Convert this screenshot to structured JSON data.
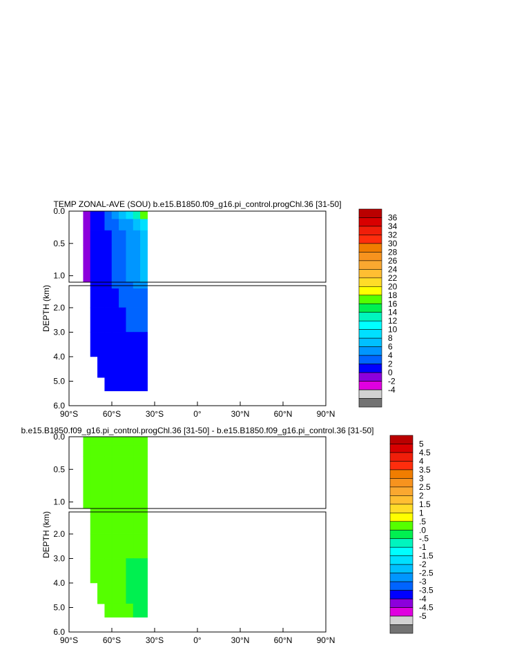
{
  "chart_data": [
    {
      "type": "heatmap",
      "title": "TEMP ZONAL-AVE (SOU) b.e15.B1850.f09_g16.pi_control.progChl.36 [31-50]",
      "ylabel": "DEPTH (km)",
      "xlim": [
        -90,
        90
      ],
      "x_ticks": [
        "90°S",
        "60°S",
        "30°S",
        "0°",
        "30°N",
        "60°N",
        "90°N"
      ],
      "y_ticks_upper": [
        "0.0",
        "0.5",
        "1.0"
      ],
      "y_ticks_lower": [
        "2.0",
        "3.0",
        "4.0",
        "5.0",
        "6.0"
      ],
      "upper_depth_range_km": [
        0,
        1.1
      ],
      "lower_depth_range_km": [
        1.1,
        6.0
      ],
      "colorbar_labels": [
        "36",
        "34",
        "32",
        "30",
        "28",
        "26",
        "24",
        "22",
        "20",
        "18",
        "16",
        "14",
        "12",
        "10",
        "8",
        "6",
        "4",
        "2",
        "0",
        "-2",
        "-4"
      ],
      "colorbar_colors": [
        "#ba0000",
        "#d80000",
        "#f01e0a",
        "#ff2d0d",
        "#f07d00",
        "#f7931e",
        "#faa830",
        "#ffbe32",
        "#ffdc28",
        "#ffff00",
        "#55ff00",
        "#00f050",
        "#00f5be",
        "#00ffff",
        "#00e0ff",
        "#00c0ff",
        "#0096ff",
        "#0064ff",
        "#0000ff",
        "#8c00dc",
        "#e000e0",
        "#d2d2d2",
        "#737373"
      ],
      "cells": {
        "columns_lat": [
          -77.5,
          -72.5,
          -67.5,
          -62.5,
          -57.5,
          -52.5,
          -47.5,
          -42.5,
          -37.5
        ],
        "rows_depth_km": [
          0.05,
          0.2,
          0.4,
          0.65,
          0.95,
          1.5,
          2.5,
          3.5,
          4.5,
          5.2
        ],
        "values": [
          [
            -1,
            0.5,
            1.2,
            2.5,
            4.5,
            6.5,
            9.0,
            13.0,
            17.0
          ],
          [
            -1,
            1.0,
            1.5,
            2.0,
            3.5,
            4.5,
            5.5,
            7.0,
            9.5
          ],
          [
            -1,
            1.0,
            1.5,
            1.8,
            2.5,
            3.5,
            4.5,
            5.5,
            7.0
          ],
          [
            -1,
            1.0,
            1.5,
            1.8,
            2.5,
            3.0,
            4.0,
            5.0,
            6.5
          ],
          [
            null,
            1.0,
            1.5,
            1.8,
            2.0,
            2.5,
            3.2,
            4.0,
            5.0
          ],
          [
            null,
            1.0,
            1.5,
            1.8,
            1.9,
            2.2,
            2.8,
            3.2,
            3.5
          ],
          [
            null,
            1.0,
            1.5,
            1.8,
            1.9,
            1.9,
            2.2,
            2.5,
            2.6
          ],
          [
            null,
            1.0,
            1.5,
            1.8,
            1.9,
            1.9,
            1.9,
            1.9,
            1.9
          ],
          [
            null,
            null,
            1.5,
            1.6,
            1.7,
            1.8,
            1.9,
            1.9,
            1.9
          ],
          [
            null,
            null,
            null,
            1.5,
            1.6,
            1.7,
            1.8,
            1.9,
            1.9
          ]
        ]
      }
    },
    {
      "type": "heatmap",
      "title": "b.e15.B1850.f09_g16.pi_control.progChl.36 [31-50] - b.e15.B1850.f09_g16.pi_control.36 [31-50]",
      "ylabel": "DEPTH (km)",
      "xlim": [
        -90,
        90
      ],
      "x_ticks": [
        "90°S",
        "60°S",
        "30°S",
        "0°",
        "30°N",
        "60°N",
        "90°N"
      ],
      "y_ticks_upper": [
        "0.0",
        "0.5",
        "1.0"
      ],
      "y_ticks_lower": [
        "2.0",
        "3.0",
        "4.0",
        "5.0",
        "6.0"
      ],
      "upper_depth_range_km": [
        0,
        1.1
      ],
      "lower_depth_range_km": [
        1.1,
        6.0
      ],
      "colorbar_labels": [
        "5",
        "4.5",
        "4",
        "3.5",
        "3",
        "2.5",
        "2",
        "1.5",
        "1",
        ".5",
        ".0",
        "-.5",
        "-1",
        "-1.5",
        "-2",
        "-2.5",
        "-3",
        "-3.5",
        "-4",
        "-4.5",
        "-5"
      ],
      "colorbar_colors": [
        "#ba0000",
        "#d80000",
        "#f01e0a",
        "#ff2d0d",
        "#f07d00",
        "#f7931e",
        "#faa830",
        "#ffbe32",
        "#ffdc28",
        "#ffff00",
        "#55ff00",
        "#00f050",
        "#00f5be",
        "#00ffff",
        "#00e0ff",
        "#00c0ff",
        "#0096ff",
        "#0064ff",
        "#0000ff",
        "#8c00dc",
        "#e000e0",
        "#d2d2d2",
        "#737373"
      ],
      "cells": {
        "columns_lat": [
          -77.5,
          -72.5,
          -67.5,
          -62.5,
          -57.5,
          -52.5,
          -47.5,
          -42.5,
          -37.5
        ],
        "rows_depth_km": [
          0.05,
          0.2,
          0.4,
          0.65,
          0.95,
          1.5,
          2.5,
          3.5,
          4.5,
          5.2
        ],
        "values": [
          [
            0.2,
            0.2,
            0.2,
            0.2,
            0.2,
            0.2,
            0.2,
            0.2,
            0.2
          ],
          [
            0.2,
            0.2,
            0.2,
            0.2,
            0.2,
            0.2,
            0.2,
            0.2,
            0.2
          ],
          [
            0.2,
            0.2,
            0.2,
            0.2,
            0.2,
            0.2,
            0.2,
            0.2,
            0.2
          ],
          [
            0.2,
            0.2,
            0.2,
            0.2,
            0.2,
            0.2,
            0.2,
            0.2,
            0.2
          ],
          [
            null,
            0.2,
            0.2,
            0.2,
            0.2,
            0.2,
            0.2,
            0.2,
            0.2
          ],
          [
            null,
            0.2,
            0.2,
            0.2,
            0.2,
            0.2,
            0.2,
            0.2,
            0.2
          ],
          [
            null,
            0.2,
            0.2,
            0.2,
            0.2,
            0.2,
            0.2,
            0.2,
            0.2
          ],
          [
            null,
            0.2,
            0.2,
            0.2,
            0.2,
            0.2,
            -0.2,
            -0.2,
            -0.2
          ],
          [
            null,
            null,
            0.2,
            0.2,
            0.2,
            0.2,
            -0.2,
            -0.2,
            -0.2
          ],
          [
            null,
            null,
            null,
            0.2,
            0.2,
            0.2,
            0.2,
            -0.2,
            -0.2
          ]
        ]
      }
    }
  ]
}
